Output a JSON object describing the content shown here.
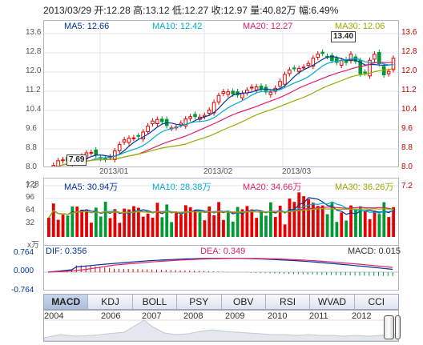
{
  "header": {
    "date": "2013/03/29",
    "open_label": "开:",
    "open": "12.28",
    "high_label": "高:",
    "high": "13.12",
    "low_label": "低:",
    "low": "12.27",
    "close_label": "收:",
    "close": "12.97",
    "volume_label": "量:",
    "volume": "40.82万",
    "change_label": "幅:",
    "change": "6.49%"
  },
  "price_panel": {
    "legend": {
      "ma5": "MA5: 12.66",
      "ma10": "MA10: 12.42",
      "ma20": "MA20: 12.27",
      "ma30": "MA30: 12.06"
    },
    "y_ticks": [
      "13.6",
      "12.8",
      "12.0",
      "11.2",
      "10.4",
      "9.6",
      "8.8",
      "8.0",
      "7.2"
    ],
    "x_ticks": [
      "2013/01",
      "2013/02",
      "2013/03"
    ],
    "high_callout": "13.40",
    "low_callout": "7.69"
  },
  "volume_panel": {
    "legend": {
      "ma5": "MA5: 30.94万",
      "ma10": "MA10: 28.38万",
      "ma20": "MA20: 34.66万",
      "ma30": "MA30: 36.26万"
    },
    "y_ticks": [
      "128",
      "96",
      "64",
      "32"
    ],
    "unit": "x万"
  },
  "macd_panel": {
    "dif": "DIF: 0.356",
    "dea": "DEA: 0.349",
    "macd": "MACD: 0.015",
    "y_ticks": [
      "0.764",
      "0.000",
      "-0.764"
    ]
  },
  "tabs": [
    "MACD",
    "KDJ",
    "BOLL",
    "PSY",
    "OBV",
    "RSI",
    "WVAD",
    "CCI"
  ],
  "active_tab": "MACD",
  "timeline": {
    "years": [
      "2004",
      "2006",
      "2007",
      "2008",
      "2009",
      "2010",
      "2011",
      "2012"
    ]
  },
  "colors": {
    "up": "#e60000",
    "down": "#009933",
    "ma5": "#003399",
    "ma10": "#00aacc",
    "ma20": "#e0206a",
    "ma30": "#99aa00"
  }
}
